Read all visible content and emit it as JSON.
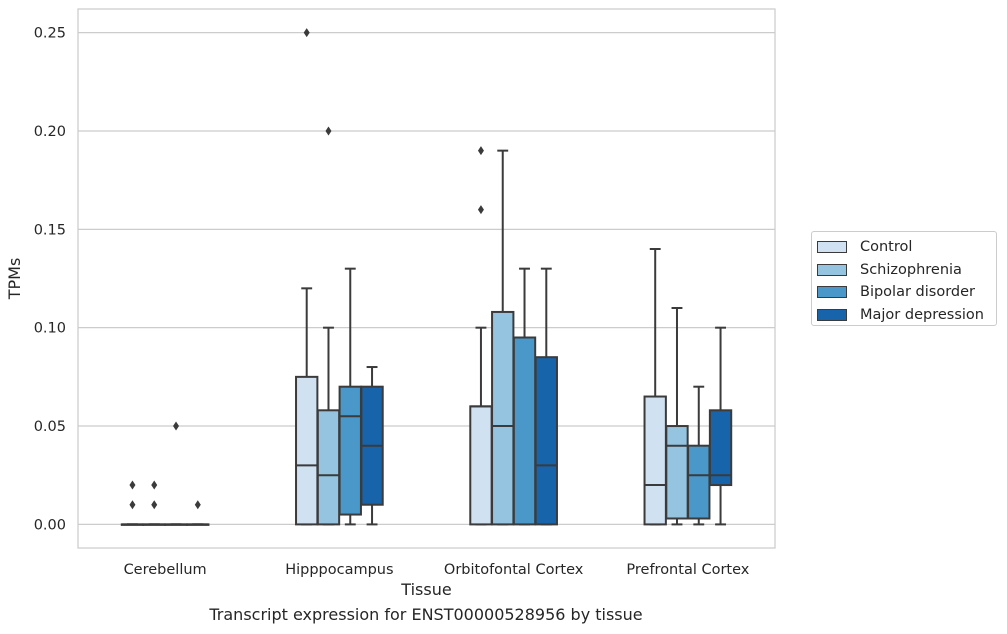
{
  "caption": "Transcript expression for ENST00000528956 by tissue",
  "chart_data": {
    "type": "box",
    "title": "",
    "xlabel": "Tissue",
    "ylabel": "TPMs",
    "ylim": [
      -0.012,
      0.262
    ],
    "yticks": [
      "0.00",
      "0.05",
      "0.10",
      "0.15",
      "0.20",
      "0.25"
    ],
    "categories": [
      "Cerebellum",
      "Hipppocampus",
      "Orbitofontal Cortex",
      "Prefrontal Cortex"
    ],
    "grid": "horizontal",
    "legend_position": "right",
    "series": [
      {
        "name": "Control",
        "color": "#d0e1f2",
        "boxes": [
          {
            "q1": 0,
            "median": 0,
            "q3": 0,
            "low": 0,
            "high": 0,
            "outliers": [
              0.01,
              0.02
            ]
          },
          {
            "q1": 0,
            "median": 0.03,
            "q3": 0.075,
            "low": 0,
            "high": 0.12,
            "outliers": [
              0.25
            ]
          },
          {
            "q1": 0,
            "median": 0.06,
            "q3": 0.06,
            "low": 0,
            "high": 0.1,
            "outliers": [
              0.16,
              0.19
            ]
          },
          {
            "q1": 0,
            "median": 0.02,
            "q3": 0.065,
            "low": 0,
            "high": 0.14,
            "outliers": []
          }
        ]
      },
      {
        "name": "Schizophrenia",
        "color": "#94c4df",
        "boxes": [
          {
            "q1": 0,
            "median": 0,
            "q3": 0,
            "low": 0,
            "high": 0,
            "outliers": [
              0.01,
              0.02
            ]
          },
          {
            "q1": 0,
            "median": 0.025,
            "q3": 0.058,
            "low": 0,
            "high": 0.1,
            "outliers": [
              0.2
            ]
          },
          {
            "q1": 0,
            "median": 0.05,
            "q3": 0.108,
            "low": 0,
            "high": 0.19,
            "outliers": []
          },
          {
            "q1": 0.003,
            "median": 0.04,
            "q3": 0.05,
            "low": 0,
            "high": 0.11,
            "outliers": []
          }
        ]
      },
      {
        "name": "Bipolar disorder",
        "color": "#4a98c9",
        "boxes": [
          {
            "q1": 0,
            "median": 0,
            "q3": 0,
            "low": 0,
            "high": 0,
            "outliers": [
              0.05
            ]
          },
          {
            "q1": 0.005,
            "median": 0.055,
            "q3": 0.07,
            "low": 0,
            "high": 0.13,
            "outliers": []
          },
          {
            "q1": 0,
            "median": 0.095,
            "q3": 0.095,
            "low": 0,
            "high": 0.13,
            "outliers": []
          },
          {
            "q1": 0.003,
            "median": 0.025,
            "q3": 0.04,
            "low": 0,
            "high": 0.07,
            "outliers": []
          }
        ]
      },
      {
        "name": "Major depression",
        "color": "#1764ab",
        "boxes": [
          {
            "q1": 0,
            "median": 0,
            "q3": 0,
            "low": 0,
            "high": 0,
            "outliers": [
              0.01
            ]
          },
          {
            "q1": 0.01,
            "median": 0.04,
            "q3": 0.07,
            "low": 0,
            "high": 0.08,
            "outliers": []
          },
          {
            "q1": 0,
            "median": 0.03,
            "q3": 0.085,
            "low": 0,
            "high": 0.13,
            "outliers": []
          },
          {
            "q1": 0.02,
            "median": 0.025,
            "q3": 0.058,
            "low": 0,
            "high": 0.1,
            "outliers": []
          }
        ]
      }
    ]
  }
}
